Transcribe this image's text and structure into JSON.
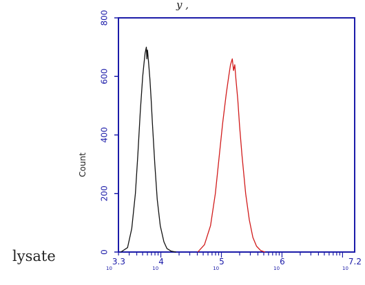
{
  "caption": "lysate",
  "chart_data": {
    "type": "line",
    "title_fragment": "y      ,",
    "ylabel": "Count",
    "xlabel": "",
    "x_scale": "log10",
    "xlim": [
      3.3,
      7.2
    ],
    "ylim": [
      0,
      800
    ],
    "y_ticks": [
      "0",
      "200",
      "400",
      "600",
      "800"
    ],
    "x_tick_labels": [
      {
        "base": "10",
        "exp": "3.3"
      },
      {
        "base": "10",
        "exp": "4"
      },
      {
        "base": "10",
        "exp": "5"
      },
      {
        "base": "10",
        "exp": "6"
      },
      {
        "base": "10",
        "exp": "7.2"
      }
    ],
    "grid": false,
    "legend": "none",
    "colors": {
      "axis": "#1a1aa8",
      "frame": "#1a1aa8",
      "series_1": "#111111",
      "series_2": "#d11a1a"
    },
    "series": [
      {
        "x": [
          3.34,
          3.45,
          3.52,
          3.58,
          3.62,
          3.66,
          3.7,
          3.72,
          3.74,
          3.76,
          3.77,
          3.78,
          3.8,
          3.82,
          3.84,
          3.86,
          3.9,
          3.94,
          3.99,
          4.05,
          4.1,
          4.17,
          4.25
        ],
        "y": [
          0,
          15,
          80,
          200,
          330,
          480,
          600,
          640,
          680,
          700,
          660,
          690,
          640,
          590,
          520,
          440,
          300,
          180,
          90,
          35,
          12,
          3,
          0
        ]
      },
      {
        "x": [
          4.61,
          4.72,
          4.82,
          4.9,
          4.96,
          5.02,
          5.08,
          5.12,
          5.15,
          5.18,
          5.2,
          5.22,
          5.24,
          5.27,
          5.3,
          5.34,
          5.4,
          5.46,
          5.52,
          5.58,
          5.65,
          5.72
        ],
        "y": [
          0,
          25,
          90,
          200,
          320,
          440,
          540,
          600,
          640,
          660,
          620,
          640,
          590,
          520,
          430,
          330,
          200,
          110,
          50,
          20,
          5,
          0
        ]
      }
    ]
  }
}
